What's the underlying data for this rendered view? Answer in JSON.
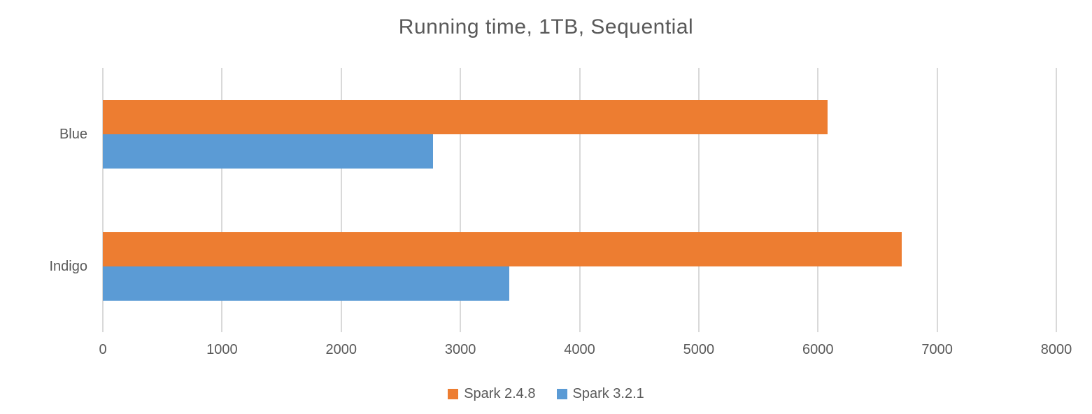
{
  "chart_data": {
    "type": "bar",
    "orientation": "horizontal",
    "title": "Running time, 1TB, Sequential",
    "categories": [
      "Blue",
      "Indigo"
    ],
    "series": [
      {
        "name": "Spark 2.4.8",
        "color": "#ED7D31",
        "values": [
          6080,
          6700
        ]
      },
      {
        "name": "Spark 3.2.1",
        "color": "#5B9BD5",
        "values": [
          2770,
          3410
        ]
      }
    ],
    "xlabel": "",
    "ylabel": "",
    "xlim": [
      0,
      8000
    ],
    "x_ticks": [
      0,
      1000,
      2000,
      3000,
      4000,
      5000,
      6000,
      7000,
      8000
    ],
    "grid": "vertical-only",
    "legend_position": "bottom-center",
    "text_color": "#595959",
    "gridline_color": "#D9D9D9",
    "background_color": "#FFFFFF"
  }
}
